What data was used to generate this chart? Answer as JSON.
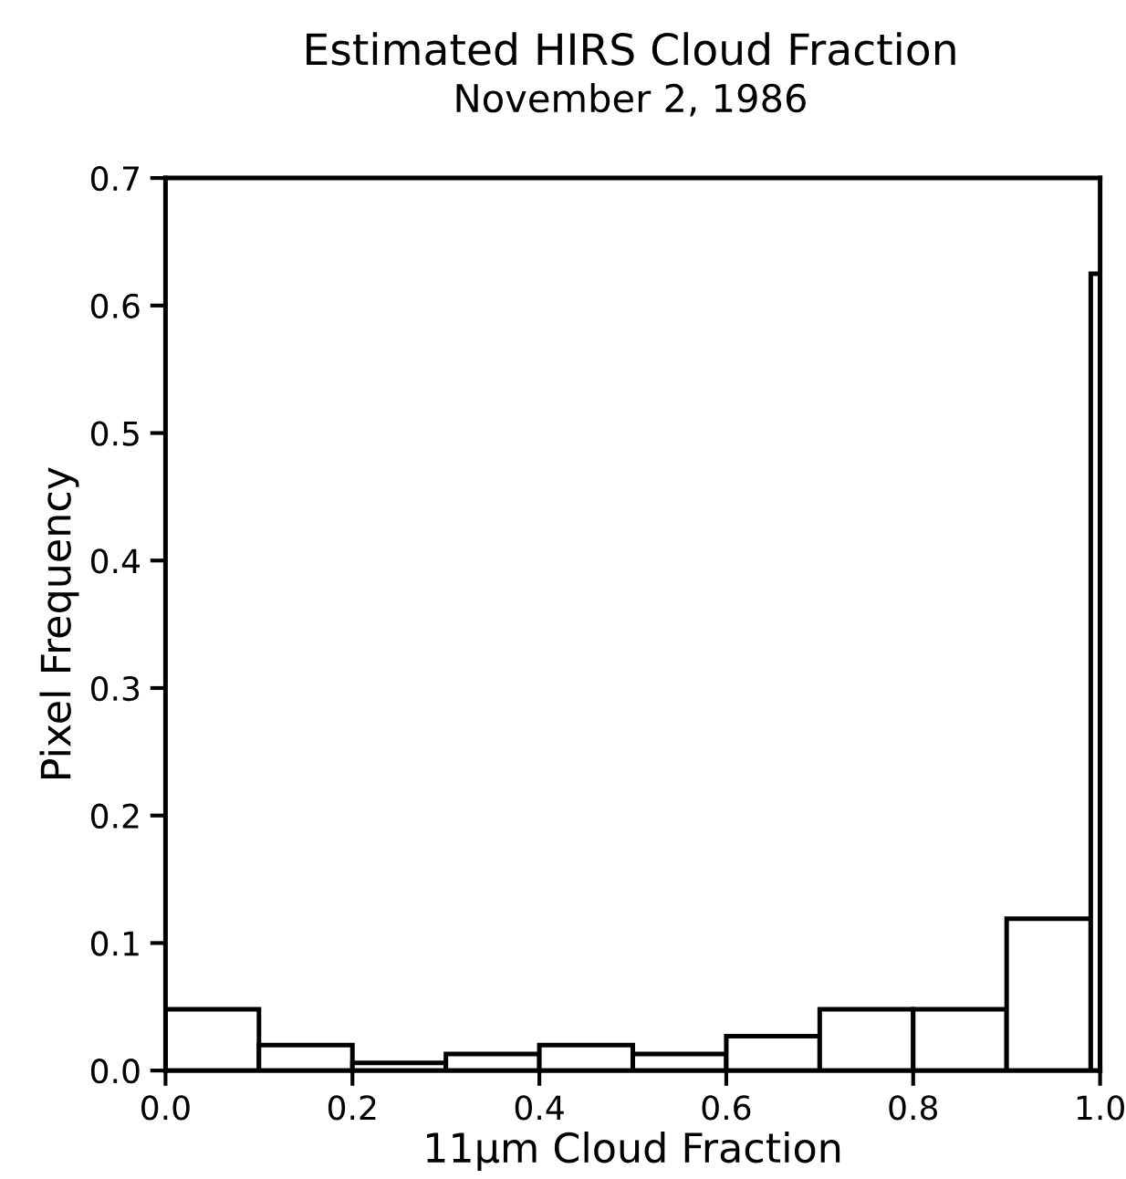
{
  "chart_data": {
    "type": "histogram",
    "title": "Estimated HIRS Cloud Fraction",
    "subtitle": "November 2, 1986",
    "xlabel": "11μm Cloud Fraction",
    "ylabel": "Pixel Frequency",
    "bins": [
      0.0,
      0.1,
      0.2,
      0.3,
      0.4,
      0.5,
      0.6,
      0.7,
      0.8,
      0.9,
      0.99,
      1.0
    ],
    "values": [
      0.048,
      0.02,
      0.006,
      0.013,
      0.02,
      0.013,
      0.027,
      0.048,
      0.048,
      0.119,
      0.625
    ],
    "color": "#ffffff",
    "xlim": [
      0.0,
      1.0
    ],
    "ylim": [
      0.0,
      0.7
    ],
    "xticks": [
      {
        "value": 0.0,
        "label": "0.0"
      },
      {
        "value": 0.2,
        "label": "0.2"
      },
      {
        "value": 0.4,
        "label": "0.4"
      },
      {
        "value": 0.6,
        "label": "0.6"
      },
      {
        "value": 0.8,
        "label": "0.8"
      },
      {
        "value": 1.0,
        "label": "1.0"
      }
    ],
    "yticks": [
      {
        "value": 0.0,
        "label": "0.0"
      },
      0.1,
      0.2,
      0.3,
      0.4,
      0.5,
      0.6,
      0.7
    ],
    "grid": false
  }
}
